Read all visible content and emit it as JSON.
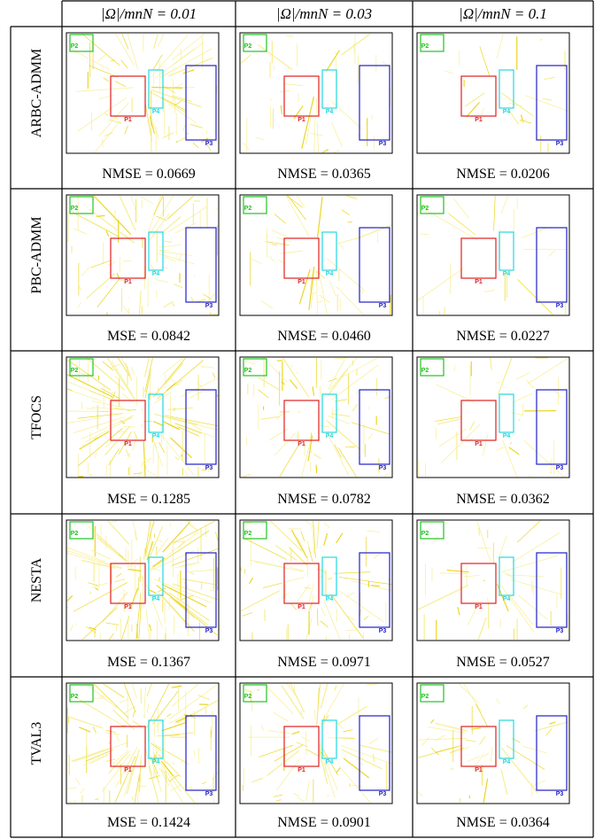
{
  "header": {
    "columns": [
      "|Ω|/mnN = 0.01",
      "|Ω|/mnN = 0.03",
      "|Ω|/mnN = 0.1"
    ]
  },
  "box_labels": [
    "P1",
    "P2",
    "P3",
    "P4"
  ],
  "rows": [
    {
      "label": "ARBC-ADMM",
      "cells": [
        "NMSE = 0.0669",
        "NMSE = 0.0365",
        "NMSE = 0.0206"
      ]
    },
    {
      "label": "PBC-ADMM",
      "cells": [
        "MSE = 0.0842",
        "NMSE = 0.0460",
        "NMSE = 0.0227"
      ]
    },
    {
      "label": "TFOCS",
      "cells": [
        "MSE = 0.1285",
        "NMSE = 0.0782",
        "NMSE = 0.0362"
      ]
    },
    {
      "label": "NESTA",
      "cells": [
        "MSE = 0.1367",
        "NMSE = 0.0971",
        "NMSE = 0.0527"
      ]
    },
    {
      "label": "TVAL3",
      "cells": [
        "MSE = 0.1424",
        "NMSE = 0.0901",
        "NMSE = 0.0364"
      ]
    }
  ]
}
